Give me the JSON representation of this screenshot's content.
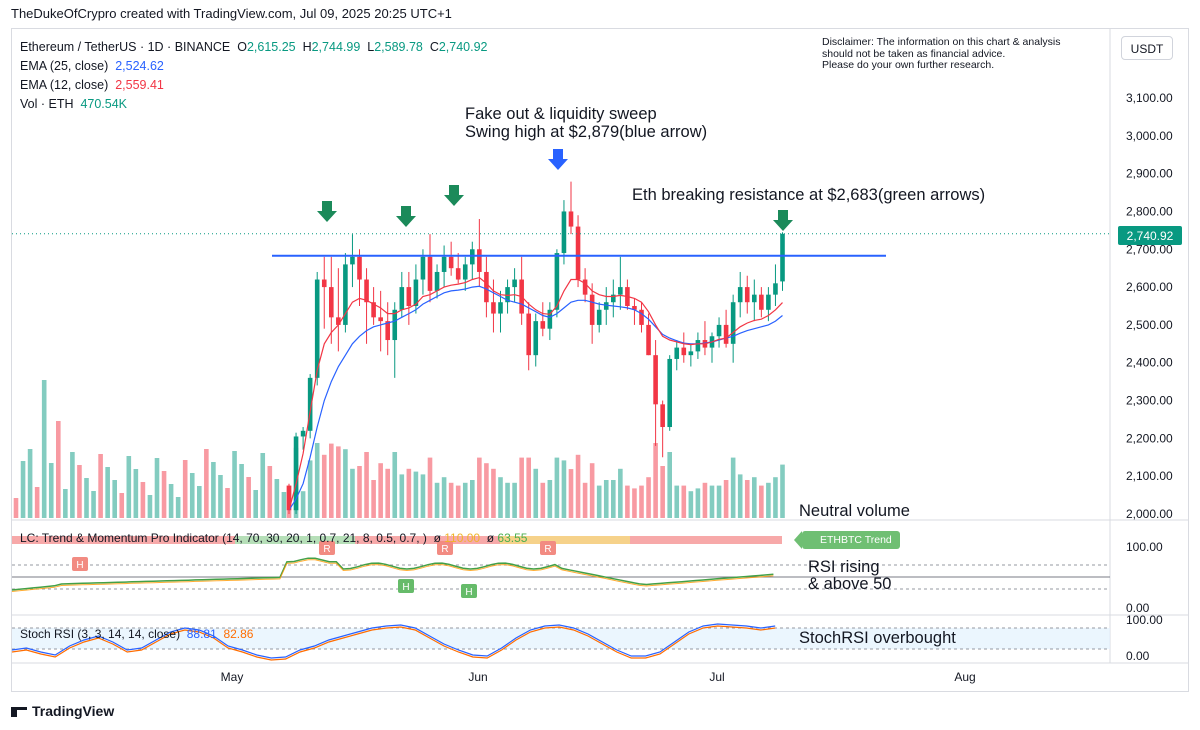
{
  "credit": "TheDukeOfCrypro created with TradingView.com, Jul 09, 2025 20:25 UTC+1",
  "legend": {
    "symbol": "Ethereum / TetherUS · 1D · BINANCE",
    "o_label": "O",
    "o": "2,615.25",
    "h_label": "H",
    "h": "2,744.99",
    "l_label": "L",
    "l": "2,589.78",
    "c_label": "C",
    "c": "2,740.92",
    "ema25_label": "EMA (25, close)",
    "ema25": "2,524.62",
    "ema12_label": "EMA (12, close)",
    "ema12": "2,559.41",
    "vol_label": "Vol · ETH",
    "vol": "470.54K"
  },
  "disclaimer": {
    "line1": "Disclaimer: The information on this chart & analysis",
    "line2": "should not be taken as financial advice.",
    "line3": "Please do your own further research."
  },
  "currency_button": "USDT",
  "annotations": {
    "fake_out_1": "Fake out & liquidity sweep",
    "fake_out_2": "Swing high at $2,879(blue arrow)",
    "breaking": "Eth breaking resistance at $2,683(green arrows)",
    "neutral_volume": "Neutral volume",
    "rsi_1": "RSI rising",
    "rsi_2": "& above 50",
    "stoch": "StochRSI overbought"
  },
  "indicator": {
    "label": "LC: Trend & Momentum Pro Indicator (14, 70, 30, 20, 1, 0.7, 21, 8, 0.5, 0.7, )",
    "value1_prefix": "ø",
    "value1": "110.00",
    "value2_prefix": "ø",
    "value2": "63.55",
    "badge": "ETHBTC Trend",
    "marker_h": "H",
    "marker_r": "R",
    "axis": [
      "100.00",
      "0.00"
    ]
  },
  "stoch": {
    "label": "Stoch RSI (3, 3, 14, 14, close)",
    "k": "88.81",
    "d": "82.86",
    "axis": [
      "100.00",
      "0.00"
    ]
  },
  "price_axis": [
    "3,100.00",
    "3,000.00",
    "2,900.00",
    "2,800.00",
    "2,700.00",
    "2,600.00",
    "2,500.00",
    "2,400.00",
    "2,300.00",
    "2,200.00",
    "2,100.00",
    "2,000.00"
  ],
  "last_price_tag": "2,740.92",
  "time_axis": [
    "May",
    "Jun",
    "Jul",
    "Aug"
  ],
  "branding": "TradingView",
  "colors": {
    "up": "#089981",
    "down": "#f23645",
    "ema25": "#2962ff",
    "ema12": "#f23645",
    "resistance": "#2962ff",
    "arrow_green": "#1b8a5a",
    "arrow_blue": "#2962ff"
  },
  "chart_data": {
    "type": "candlestick",
    "title": "Ethereum / TetherUS · 1D · BINANCE",
    "ylim": [
      2000,
      3150
    ],
    "resistance": 2683,
    "swing_high": 2879,
    "candles": [
      [
        2000,
        2020,
        1990,
        2010
      ],
      [
        2010,
        2030,
        2000,
        2015
      ],
      [
        2015,
        2030,
        2005,
        2020
      ],
      [
        2020,
        2035,
        2010,
        2025
      ],
      [
        2025,
        2040,
        2015,
        2030
      ],
      [
        2030,
        2050,
        2020,
        2035
      ],
      [
        2035,
        2055,
        2025,
        2040
      ],
      [
        2040,
        2060,
        2030,
        2045
      ],
      [
        2045,
        2065,
        2035,
        2050
      ],
      [
        2050,
        2070,
        2040,
        2055
      ],
      [
        2055,
        2075,
        2045,
        2060
      ],
      [
        2060,
        2080,
        2050,
        2065
      ],
      [
        2065,
        2085,
        2055,
        2070
      ],
      [
        2070,
        2090,
        2060,
        2075
      ],
      [
        2075,
        2095,
        2065,
        2080
      ],
      [
        2080,
        2100,
        2070,
        2085
      ],
      [
        2085,
        2105,
        2075,
        2090
      ],
      [
        2090,
        2110,
        2080,
        2095
      ],
      [
        2095,
        2115,
        2085,
        2100
      ],
      [
        2100,
        2120,
        2090,
        2105
      ],
      [
        2105,
        2130,
        2095,
        2110
      ],
      [
        2110,
        2135,
        2100,
        2120
      ],
      [
        2120,
        2140,
        2110,
        2125
      ],
      [
        2125,
        2150,
        2115,
        2130
      ],
      [
        2130,
        2155,
        2120,
        2140
      ],
      [
        2140,
        2160,
        2130,
        2150
      ],
      [
        2150,
        2170,
        2140,
        2160
      ],
      [
        2160,
        2180,
        2150,
        2170
      ],
      [
        2170,
        2190,
        2160,
        2180
      ],
      [
        2180,
        2200,
        2170,
        2190
      ],
      [
        2190,
        2215,
        2180,
        2200
      ],
      [
        2200,
        2230,
        2190,
        2215
      ],
      [
        2215,
        2240,
        2200,
        2230
      ],
      [
        2230,
        2250,
        2215,
        2245
      ],
      [
        2245,
        2260,
        2230,
        2250
      ],
      [
        2250,
        2270,
        2235,
        2255
      ],
      [
        2255,
        2275,
        2240,
        2260
      ],
      [
        2260,
        2280,
        2245,
        2265
      ],
      [
        2265,
        2285,
        2250,
        2270
      ],
      [
        2270,
        2290,
        2255,
        2275
      ],
      [
        2275,
        2295,
        2260,
        2280
      ],
      [
        2280,
        2300,
        2265,
        2285
      ],
      [
        2285,
        2305,
        2270,
        2290
      ],
      [
        2290,
        2310,
        2275,
        2295
      ],
      [
        2295,
        2315,
        2280,
        2300
      ],
      [
        2300,
        2320,
        2285,
        2305
      ],
      [
        2305,
        2325,
        2290,
        2310
      ],
      [
        2310,
        2330,
        2295,
        2315
      ],
      [
        2315,
        2335,
        2300,
        2320
      ],
      [
        2320,
        2340,
        2305,
        2325
      ],
      [
        2325,
        2345,
        2310,
        2330
      ],
      [
        2330,
        2350,
        2315,
        2335
      ],
      [
        2335,
        2355,
        2320,
        2340
      ],
      [
        2340,
        2360,
        2325,
        2345
      ],
      [
        2345,
        2365,
        2330,
        2350
      ],
      [
        2350,
        2370,
        2335,
        2355
      ],
      [
        2355,
        2375,
        2340,
        2360
      ],
      [
        2360,
        2380,
        2345,
        2365
      ],
      [
        2365,
        2385,
        2350,
        2370
      ],
      [
        2370,
        2390,
        2355,
        2375
      ],
      [
        2375,
        2395,
        2360,
        2380
      ],
      [
        2380,
        2400,
        2365,
        2385
      ],
      [
        2385,
        2405,
        2370,
        2390
      ],
      [
        2390,
        2410,
        2375,
        2395
      ],
      [
        2395,
        2415,
        2380,
        2400
      ],
      [
        2400,
        2420,
        2385,
        2405
      ],
      [
        2405,
        2425,
        2390,
        2410
      ],
      [
        2410,
        2430,
        2395,
        2415
      ],
      [
        2415,
        2435,
        2400,
        2420
      ],
      [
        2420,
        2440,
        2405,
        2425
      ],
      [
        2425,
        2445,
        2410,
        2430
      ],
      [
        2430,
        2450,
        2415,
        2435
      ],
      [
        2435,
        2455,
        2420,
        2440
      ],
      [
        2440,
        2460,
        2425,
        2445
      ],
      [
        2445,
        2465,
        2430,
        2450
      ],
      [
        2450,
        2470,
        2435,
        2455
      ],
      [
        2455,
        2475,
        2440,
        2460
      ],
      [
        2460,
        2480,
        2445,
        2465
      ],
      [
        2465,
        2485,
        2450,
        2470
      ],
      [
        2470,
        2490,
        2455,
        2475
      ],
      [
        2475,
        2495,
        2460,
        2480
      ],
      [
        2480,
        2500,
        2465,
        2485
      ],
      [
        2485,
        2505,
        2470,
        2490
      ],
      [
        2490,
        2510,
        2475,
        2495
      ],
      [
        2495,
        2515,
        2480,
        2500
      ],
      [
        2500,
        2520,
        2485,
        2505
      ],
      [
        2505,
        2525,
        2490,
        2510
      ],
      [
        2510,
        2530,
        2495,
        2515
      ],
      [
        2515,
        2535,
        2500,
        2520
      ],
      [
        2520,
        2540,
        2505,
        2525
      ],
      [
        2525,
        2545,
        2510,
        2530
      ],
      [
        2530,
        2550,
        2515,
        2535
      ],
      [
        2535,
        2555,
        2520,
        2540
      ],
      [
        2540,
        2560,
        2525,
        2545
      ],
      [
        2545,
        2565,
        2530,
        2550
      ],
      [
        2550,
        2570,
        2535,
        2555
      ],
      [
        2555,
        2575,
        2540,
        2560
      ],
      [
        2560,
        2580,
        2545,
        2565
      ],
      [
        2565,
        2585,
        2550,
        2570
      ],
      [
        2570,
        2590,
        2555,
        2575
      ],
      [
        2575,
        2595,
        2560,
        2580
      ],
      [
        2580,
        2600,
        2565,
        2585
      ],
      [
        2585,
        2605,
        2570,
        2590
      ],
      [
        2590,
        2610,
        2575,
        2595
      ],
      [
        2595,
        2615,
        2580,
        2600
      ],
      [
        2600,
        2620,
        2585,
        2605
      ],
      [
        2605,
        2625,
        2590,
        2610
      ],
      [
        2610,
        2630,
        2595,
        2615
      ],
      [
        2615,
        2745,
        2590,
        2741
      ]
    ],
    "candles_visible": [
      [
        2075,
        2080,
        2000,
        2010
      ],
      [
        2010,
        2215,
        2000,
        2205
      ],
      [
        2205,
        2230,
        2170,
        2220
      ],
      [
        2220,
        2370,
        2200,
        2360
      ],
      [
        2360,
        2640,
        2340,
        2620
      ],
      [
        2620,
        2680,
        2490,
        2600
      ],
      [
        2600,
        2680,
        2450,
        2520
      ],
      [
        2520,
        2650,
        2430,
        2500
      ],
      [
        2500,
        2690,
        2480,
        2660
      ],
      [
        2660,
        2740,
        2600,
        2680
      ],
      [
        2680,
        2700,
        2550,
        2620
      ],
      [
        2620,
        2650,
        2450,
        2560
      ],
      [
        2560,
        2600,
        2500,
        2520
      ],
      [
        2520,
        2590,
        2430,
        2510
      ],
      [
        2510,
        2560,
        2420,
        2460
      ],
      [
        2460,
        2560,
        2360,
        2540
      ],
      [
        2540,
        2640,
        2520,
        2600
      ],
      [
        2600,
        2640,
        2500,
        2550
      ],
      [
        2550,
        2660,
        2530,
        2620
      ],
      [
        2620,
        2700,
        2580,
        2680
      ],
      [
        2680,
        2740,
        2560,
        2590
      ],
      [
        2590,
        2660,
        2570,
        2640
      ],
      [
        2640,
        2710,
        2600,
        2680
      ],
      [
        2680,
        2720,
        2630,
        2650
      ],
      [
        2650,
        2690,
        2610,
        2620
      ],
      [
        2620,
        2680,
        2590,
        2660
      ],
      [
        2660,
        2720,
        2620,
        2700
      ],
      [
        2700,
        2780,
        2600,
        2640
      ],
      [
        2640,
        2680,
        2520,
        2560
      ],
      [
        2560,
        2620,
        2480,
        2530
      ],
      [
        2530,
        2590,
        2480,
        2560
      ],
      [
        2560,
        2620,
        2530,
        2600
      ],
      [
        2600,
        2650,
        2560,
        2620
      ],
      [
        2620,
        2680,
        2500,
        2530
      ],
      [
        2530,
        2560,
        2380,
        2420
      ],
      [
        2420,
        2530,
        2390,
        2510
      ],
      [
        2510,
        2560,
        2470,
        2490
      ],
      [
        2490,
        2560,
        2460,
        2540
      ],
      [
        2540,
        2700,
        2520,
        2690
      ],
      [
        2690,
        2830,
        2660,
        2800
      ],
      [
        2800,
        2879,
        2740,
        2760
      ],
      [
        2760,
        2790,
        2600,
        2620
      ],
      [
        2620,
        2650,
        2560,
        2580
      ],
      [
        2580,
        2610,
        2450,
        2500
      ],
      [
        2500,
        2560,
        2480,
        2540
      ],
      [
        2540,
        2600,
        2500,
        2560
      ],
      [
        2560,
        2620,
        2520,
        2580
      ],
      [
        2580,
        2680,
        2540,
        2600
      ],
      [
        2600,
        2620,
        2540,
        2550
      ],
      [
        2550,
        2570,
        2500,
        2540
      ],
      [
        2540,
        2560,
        2480,
        2500
      ],
      [
        2500,
        2530,
        2420,
        2420
      ],
      [
        2420,
        2460,
        2180,
        2290
      ],
      [
        2290,
        2300,
        2150,
        2230
      ],
      [
        2230,
        2420,
        2220,
        2410
      ],
      [
        2410,
        2460,
        2380,
        2440
      ],
      [
        2440,
        2480,
        2400,
        2420
      ],
      [
        2420,
        2450,
        2390,
        2430
      ],
      [
        2430,
        2480,
        2410,
        2460
      ],
      [
        2460,
        2510,
        2420,
        2440
      ],
      [
        2440,
        2480,
        2400,
        2470
      ],
      [
        2470,
        2520,
        2440,
        2500
      ],
      [
        2500,
        2540,
        2440,
        2450
      ],
      [
        2450,
        2580,
        2400,
        2560
      ],
      [
        2560,
        2640,
        2520,
        2600
      ],
      [
        2600,
        2630,
        2530,
        2560
      ],
      [
        2560,
        2620,
        2510,
        2580
      ],
      [
        2580,
        2600,
        2520,
        2540
      ],
      [
        2540,
        2600,
        2510,
        2580
      ],
      [
        2580,
        2660,
        2550,
        2610
      ],
      [
        2615,
        2745,
        2590,
        2741
      ]
    ],
    "volume_note": "volume bars at bottom of main pane",
    "ema25": [
      2010,
      2040,
      2080,
      2150,
      2230,
      2300,
      2350,
      2390,
      2420,
      2450,
      2470,
      2485,
      2495,
      2500,
      2505,
      2510,
      2520,
      2530,
      2540,
      2555,
      2565,
      2575,
      2585,
      2590,
      2592,
      2595,
      2600,
      2602,
      2595,
      2585,
      2575,
      2565,
      2560,
      2555,
      2545,
      2535,
      2525,
      2520,
      2530,
      2545,
      2560,
      2565,
      2565,
      2560,
      2555,
      2552,
      2550,
      2548,
      2545,
      2540,
      2530,
      2515,
      2495,
      2475,
      2465,
      2458,
      2452,
      2450,
      2450,
      2452,
      2455,
      2460,
      2465,
      2470,
      2478,
      2485,
      2490,
      2495,
      2500,
      2510,
      2525
    ],
    "ema12": [
      2010,
      2080,
      2160,
      2270,
      2380,
      2450,
      2480,
      2500,
      2530,
      2560,
      2570,
      2565,
      2555,
      2545,
      2530,
      2530,
      2540,
      2545,
      2555,
      2575,
      2580,
      2590,
      2600,
      2605,
      2608,
      2612,
      2620,
      2625,
      2610,
      2590,
      2580,
      2578,
      2580,
      2575,
      2555,
      2540,
      2530,
      2528,
      2550,
      2590,
      2620,
      2620,
      2610,
      2590,
      2580,
      2575,
      2575,
      2578,
      2575,
      2570,
      2560,
      2535,
      2500,
      2470,
      2460,
      2455,
      2450,
      2448,
      2450,
      2450,
      2455,
      2462,
      2465,
      2480,
      2495,
      2505,
      2512,
      2515,
      2525,
      2540,
      2559
    ],
    "rsi_panel": {
      "ylim": [
        0,
        100
      ],
      "levels": [
        70,
        50,
        30
      ]
    },
    "stoch_rsi": {
      "ylim": [
        0,
        100
      ],
      "levels": [
        80,
        20
      ],
      "k_last": 88.81,
      "d_last": 82.86
    }
  }
}
